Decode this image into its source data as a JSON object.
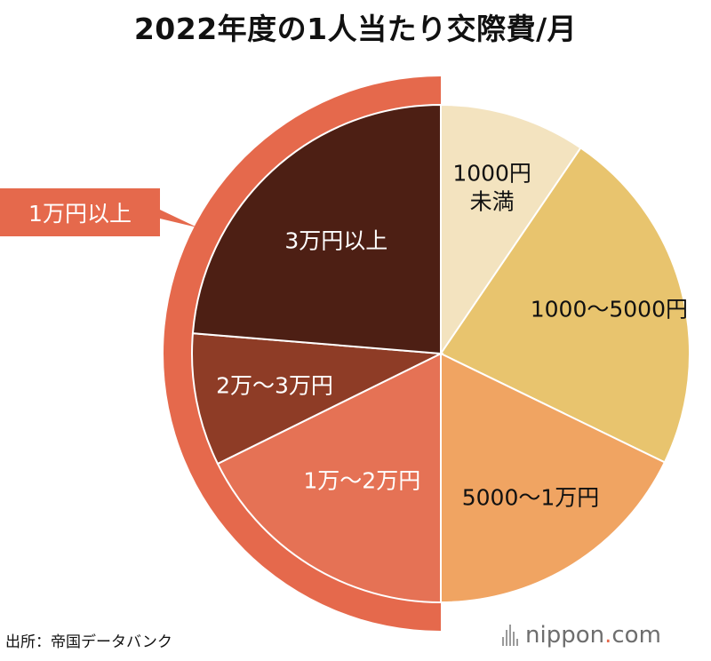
{
  "title": "2022年度の1人当たり交際費/月",
  "source": "出所：帝国データバンク",
  "logo": {
    "brand": "nippon",
    "dot": ".",
    "tld": "com"
  },
  "chart_data": {
    "type": "pie",
    "title": "2022年度の1人当たり交際費/月",
    "slices": [
      {
        "label": "1000円未満",
        "label_lines": [
          "1000円",
          "未満"
        ],
        "value": 9.5,
        "color": "#f3e3bf",
        "text_color": "#111111"
      },
      {
        "label": "1000〜5000円",
        "label_lines": [
          "1000〜5000円"
        ],
        "value": 22.7,
        "color": "#e8c46e",
        "text_color": "#111111"
      },
      {
        "label": "5000〜1万円",
        "label_lines": [
          "5000〜1万円"
        ],
        "value": 17.8,
        "color": "#f0a462",
        "text_color": "#111111"
      },
      {
        "label": "1万〜2万円",
        "label_lines": [
          "1万〜2万円"
        ],
        "value": 17.7,
        "color": "#e57255",
        "text_color": "#ffffff"
      },
      {
        "label": "2万〜3万円",
        "label_lines": [
          "2万〜3万円"
        ],
        "value": 8.6,
        "color": "#8e3c26",
        "text_color": "#ffffff"
      },
      {
        "label": "3万円以上",
        "label_lines": [
          "3万円以上"
        ],
        "value": 23.7,
        "color": "#4d1f14",
        "text_color": "#ffffff"
      }
    ],
    "group": {
      "label": "1万円以上",
      "slices": [
        "1万〜2万円",
        "2万〜3万円",
        "3万円以上"
      ],
      "color": "#e5694c"
    }
  }
}
